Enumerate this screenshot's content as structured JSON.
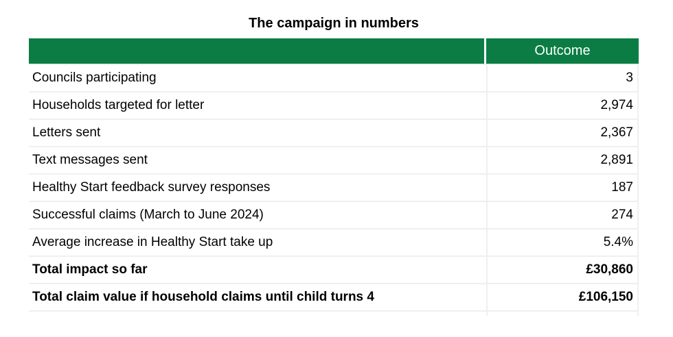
{
  "title": "The campaign in numbers",
  "colors": {
    "header_background": "#0b7d44",
    "header_text": "#ffffff",
    "cell_border": "#efefef",
    "body_text": "#000000"
  },
  "table": {
    "header": {
      "label_col": "",
      "value_col": "Outcome"
    },
    "rows": [
      {
        "label": "Councils participating",
        "value": "3",
        "bold": false
      },
      {
        "label": "Households targeted for letter",
        "value": "2,974",
        "bold": false
      },
      {
        "label": "Letters sent",
        "value": "2,367",
        "bold": false
      },
      {
        "label": "Text messages sent",
        "value": "2,891",
        "bold": false
      },
      {
        "label": "Healthy Start feedback survey responses",
        "value": "187",
        "bold": false
      },
      {
        "label": "Successful claims (March to June 2024)",
        "value": "274",
        "bold": false
      },
      {
        "label": "Average increase in Healthy Start take up",
        "value": "5.4%",
        "bold": false
      },
      {
        "label": "Total impact so far",
        "value": "£30,860",
        "bold": true
      },
      {
        "label": "Total claim value if household claims until child turns 4",
        "value": "£106,150",
        "bold": true
      }
    ]
  },
  "chart_data": {
    "type": "table",
    "title": "The campaign in numbers",
    "columns": [
      "",
      "Outcome"
    ],
    "rows": [
      [
        "Councils participating",
        "3"
      ],
      [
        "Households targeted for letter",
        "2,974"
      ],
      [
        "Letters sent",
        "2,367"
      ],
      [
        "Text messages sent",
        "2,891"
      ],
      [
        "Healthy Start feedback survey responses",
        "187"
      ],
      [
        "Successful claims (March to June 2024)",
        "274"
      ],
      [
        "Average increase in Healthy Start take up",
        "5.4%"
      ],
      [
        "Total impact so far",
        "£30,860"
      ],
      [
        "Total claim value if household claims until child turns 4",
        "£106,150"
      ]
    ]
  }
}
